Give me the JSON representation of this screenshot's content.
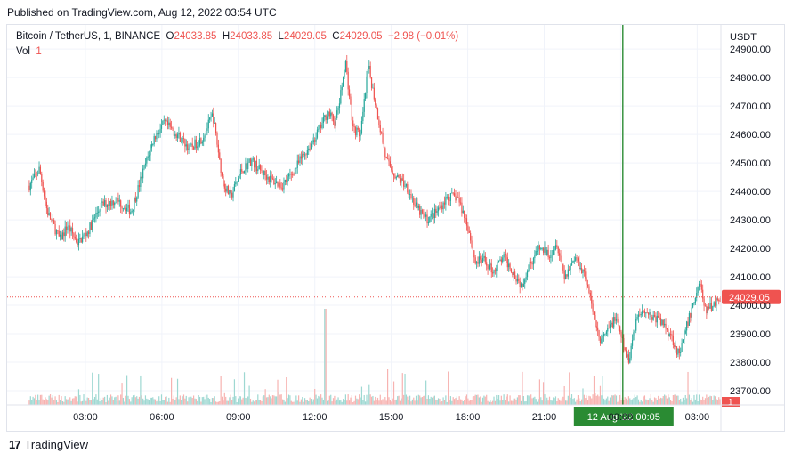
{
  "header": {
    "published": "Published on TradingView.com, Aug 12, 2022 03:54 UTC"
  },
  "legend": {
    "symbol": "Bitcoin / TetherUS, 1, BINANCE",
    "o_label": "O",
    "o": "24033.85",
    "h_label": "H",
    "h": "24033.85",
    "l_label": "L",
    "l": "24029.05",
    "c_label": "C",
    "c": "24029.05",
    "change": "−2.98 (−0.01%)",
    "vol_label": "Vol",
    "vol_value": "1"
  },
  "footer": {
    "brand": "TradingView"
  },
  "colors": {
    "up": "#26a69a",
    "down": "#ef5350",
    "up_vol": "#9ed8d2",
    "down_vol": "#f7b3b1",
    "crosshair": "#2a8b33",
    "grid": "#f0f3fa"
  },
  "chart_data": {
    "type": "candlestick",
    "currency_label": "USDT",
    "y_ticks": [
      "24900.00",
      "24800.00",
      "24700.00",
      "24600.00",
      "24500.00",
      "24400.00",
      "24300.00",
      "24200.00",
      "24100.00",
      "24000.00",
      "23900.00",
      "23800.00",
      "23700.00"
    ],
    "ylim": [
      23650,
      24985
    ],
    "x_ticks": [
      "03:00",
      "06:00",
      "09:00",
      "12:00",
      "15:00",
      "18:00",
      "21:00",
      "00:00",
      "03:00"
    ],
    "last_price_label": "24029.05",
    "last_price": 24029.05,
    "volume_last_label": "1",
    "crosshair_label_date": "12 Aug '22",
    "crosshair_label_time": "00:05",
    "time_range_hours": [
      0.8,
      27.9
    ],
    "crosshair_hour": 24.083,
    "price_path": [
      [
        0.8,
        24420
      ],
      [
        1.2,
        24480
      ],
      [
        1.5,
        24330
      ],
      [
        2.0,
        24230
      ],
      [
        2.3,
        24280
      ],
      [
        2.7,
        24220
      ],
      [
        3.1,
        24260
      ],
      [
        3.6,
        24350
      ],
      [
        4.2,
        24370
      ],
      [
        4.8,
        24330
      ],
      [
        5.3,
        24480
      ],
      [
        5.7,
        24590
      ],
      [
        6.1,
        24640
      ],
      [
        6.6,
        24600
      ],
      [
        7.1,
        24550
      ],
      [
        7.6,
        24590
      ],
      [
        8.0,
        24670
      ],
      [
        8.4,
        24430
      ],
      [
        8.7,
        24380
      ],
      [
        9.1,
        24470
      ],
      [
        9.5,
        24510
      ],
      [
        9.9,
        24470
      ],
      [
        10.3,
        24440
      ],
      [
        10.7,
        24420
      ],
      [
        11.1,
        24460
      ],
      [
        11.5,
        24520
      ],
      [
        11.8,
        24560
      ],
      [
        12.2,
        24620
      ],
      [
        12.5,
        24680
      ],
      [
        12.8,
        24640
      ],
      [
        13.0,
        24730
      ],
      [
        13.2,
        24860
      ],
      [
        13.5,
        24620
      ],
      [
        13.8,
        24600
      ],
      [
        14.1,
        24840
      ],
      [
        14.4,
        24700
      ],
      [
        14.8,
        24510
      ],
      [
        15.2,
        24450
      ],
      [
        15.6,
        24420
      ],
      [
        16.0,
        24340
      ],
      [
        16.4,
        24300
      ],
      [
        16.8,
        24330
      ],
      [
        17.2,
        24380
      ],
      [
        17.6,
        24380
      ],
      [
        18.0,
        24280
      ],
      [
        18.3,
        24150
      ],
      [
        18.6,
        24160
      ],
      [
        19.0,
        24120
      ],
      [
        19.4,
        24170
      ],
      [
        19.7,
        24130
      ],
      [
        20.1,
        24070
      ],
      [
        20.4,
        24140
      ],
      [
        20.8,
        24200
      ],
      [
        21.2,
        24180
      ],
      [
        21.5,
        24220
      ],
      [
        21.8,
        24100
      ],
      [
        22.2,
        24170
      ],
      [
        22.6,
        24110
      ],
      [
        22.9,
        23980
      ],
      [
        23.2,
        23870
      ],
      [
        23.5,
        23910
      ],
      [
        23.8,
        23960
      ],
      [
        24.1,
        23860
      ],
      [
        24.3,
        23800
      ],
      [
        24.6,
        23950
      ],
      [
        24.9,
        23990
      ],
      [
        25.2,
        23960
      ],
      [
        25.5,
        23950
      ],
      [
        25.8,
        23920
      ],
      [
        26.0,
        23890
      ],
      [
        26.3,
        23820
      ],
      [
        26.6,
        23930
      ],
      [
        26.9,
        24020
      ],
      [
        27.1,
        24090
      ],
      [
        27.3,
        23980
      ],
      [
        27.6,
        24000
      ],
      [
        27.9,
        24029
      ]
    ]
  }
}
